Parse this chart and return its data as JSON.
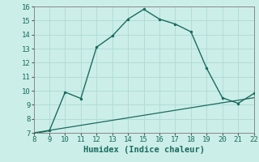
{
  "xlabel": "Humidex (Indice chaleur)",
  "ylabel": "",
  "xlim": [
    8,
    22
  ],
  "ylim": [
    7,
    16
  ],
  "xticks": [
    8,
    9,
    10,
    11,
    12,
    13,
    14,
    15,
    16,
    17,
    18,
    19,
    20,
    21,
    22
  ],
  "yticks": [
    7,
    8,
    9,
    10,
    11,
    12,
    13,
    14,
    15,
    16
  ],
  "background_color": "#cceee8",
  "line_color": "#1a6b5e",
  "curve1_x": [
    8,
    9,
    10,
    11,
    12,
    13,
    14,
    15,
    16,
    17,
    18,
    19,
    20,
    21,
    22
  ],
  "curve1_y": [
    6.95,
    7.15,
    9.9,
    9.45,
    13.1,
    13.9,
    15.1,
    15.8,
    15.1,
    14.75,
    14.2,
    11.6,
    9.5,
    9.1,
    9.8
  ],
  "curve2_x": [
    8,
    22
  ],
  "curve2_y": [
    7.0,
    9.5
  ],
  "grid_color": "#b0ddd7",
  "tick_fontsize": 6.5,
  "label_fontsize": 7.5
}
